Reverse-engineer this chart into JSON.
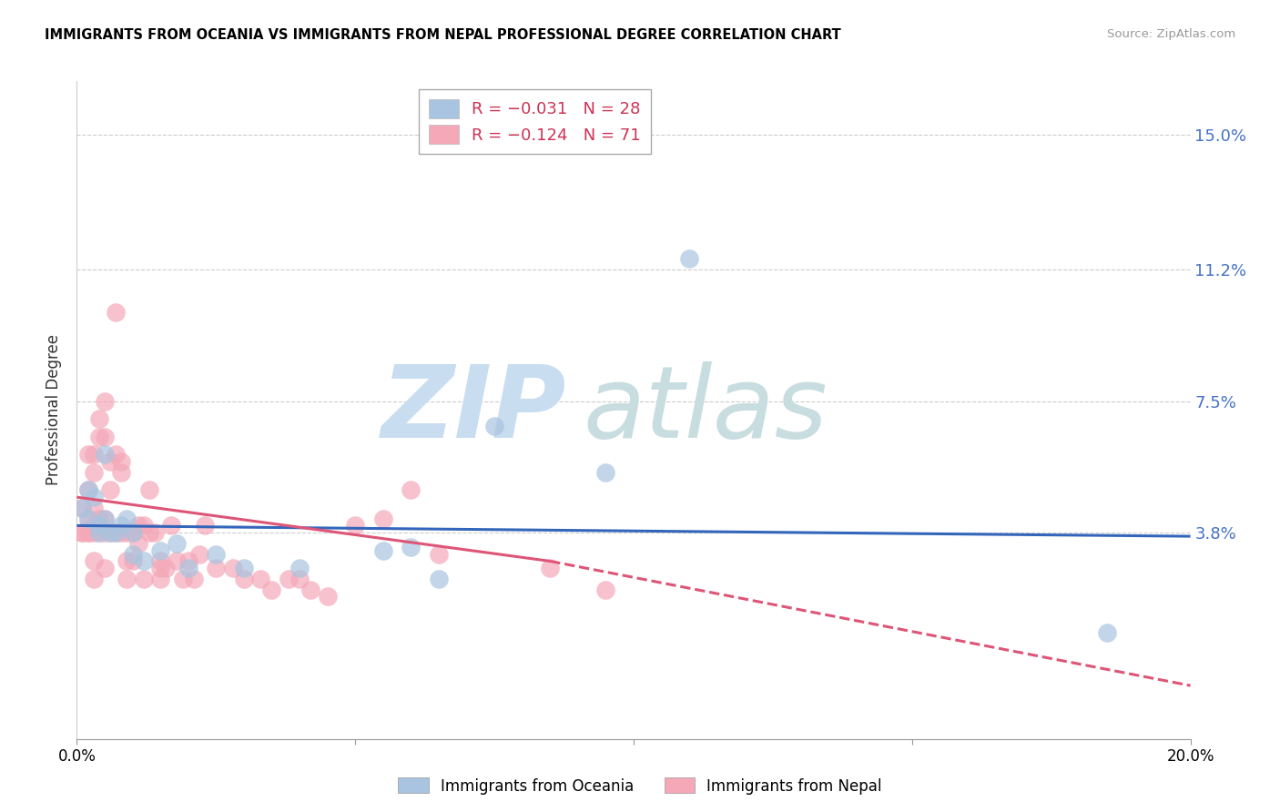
{
  "title": "IMMIGRANTS FROM OCEANIA VS IMMIGRANTS FROM NEPAL PROFESSIONAL DEGREE CORRELATION CHART",
  "source": "Source: ZipAtlas.com",
  "ylabel": "Professional Degree",
  "ytick_labels": [
    "15.0%",
    "11.2%",
    "7.5%",
    "3.8%"
  ],
  "ytick_values": [
    0.15,
    0.112,
    0.075,
    0.038
  ],
  "xmin": 0.0,
  "xmax": 0.2,
  "ymin": -0.02,
  "ymax": 0.165,
  "color_oceania": "#a8c4e0",
  "color_nepal": "#f4a8b8",
  "line_color_oceania": "#3366bb",
  "line_color_nepal": "#dd5577",
  "watermark_zip_color": "#c8ddf0",
  "watermark_atlas_color": "#c8dde0",
  "scatter_oceania_x": [
    0.001,
    0.002,
    0.002,
    0.003,
    0.004,
    0.004,
    0.005,
    0.005,
    0.006,
    0.007,
    0.008,
    0.009,
    0.01,
    0.01,
    0.012,
    0.015,
    0.018,
    0.02,
    0.025,
    0.03,
    0.04,
    0.055,
    0.06,
    0.065,
    0.075,
    0.095,
    0.11,
    0.185
  ],
  "scatter_oceania_y": [
    0.045,
    0.042,
    0.05,
    0.048,
    0.04,
    0.038,
    0.06,
    0.042,
    0.038,
    0.038,
    0.04,
    0.042,
    0.038,
    0.032,
    0.03,
    0.033,
    0.035,
    0.028,
    0.032,
    0.028,
    0.028,
    0.033,
    0.034,
    0.025,
    0.068,
    0.055,
    0.115,
    0.01
  ],
  "scatter_nepal_x": [
    0.001,
    0.001,
    0.001,
    0.002,
    0.002,
    0.002,
    0.002,
    0.002,
    0.003,
    0.003,
    0.003,
    0.003,
    0.003,
    0.003,
    0.003,
    0.004,
    0.004,
    0.004,
    0.004,
    0.005,
    0.005,
    0.005,
    0.005,
    0.005,
    0.006,
    0.006,
    0.006,
    0.007,
    0.007,
    0.007,
    0.008,
    0.008,
    0.008,
    0.009,
    0.009,
    0.009,
    0.01,
    0.01,
    0.011,
    0.011,
    0.012,
    0.012,
    0.013,
    0.013,
    0.014,
    0.015,
    0.015,
    0.015,
    0.016,
    0.017,
    0.018,
    0.019,
    0.02,
    0.021,
    0.022,
    0.023,
    0.025,
    0.028,
    0.03,
    0.033,
    0.035,
    0.038,
    0.04,
    0.042,
    0.045,
    0.05,
    0.055,
    0.06,
    0.065,
    0.085,
    0.095
  ],
  "scatter_nepal_y": [
    0.038,
    0.045,
    0.038,
    0.042,
    0.038,
    0.06,
    0.05,
    0.038,
    0.038,
    0.045,
    0.06,
    0.055,
    0.04,
    0.03,
    0.025,
    0.07,
    0.065,
    0.042,
    0.038,
    0.075,
    0.065,
    0.042,
    0.038,
    0.028,
    0.058,
    0.05,
    0.038,
    0.1,
    0.06,
    0.038,
    0.058,
    0.055,
    0.038,
    0.038,
    0.03,
    0.025,
    0.038,
    0.03,
    0.04,
    0.035,
    0.04,
    0.025,
    0.05,
    0.038,
    0.038,
    0.03,
    0.028,
    0.025,
    0.028,
    0.04,
    0.03,
    0.025,
    0.03,
    0.025,
    0.032,
    0.04,
    0.028,
    0.028,
    0.025,
    0.025,
    0.022,
    0.025,
    0.025,
    0.022,
    0.02,
    0.04,
    0.042,
    0.05,
    0.032,
    0.028,
    0.022
  ],
  "line_oceania_x0": 0.0,
  "line_oceania_y0": 0.04,
  "line_oceania_x1": 0.2,
  "line_oceania_y1": 0.037,
  "line_nepal_solid_x0": 0.0,
  "line_nepal_solid_y0": 0.048,
  "line_nepal_solid_x1": 0.085,
  "line_nepal_solid_y1": 0.03,
  "line_nepal_dash_x0": 0.085,
  "line_nepal_dash_y0": 0.03,
  "line_nepal_dash_x1": 0.2,
  "line_nepal_dash_y1": -0.005
}
